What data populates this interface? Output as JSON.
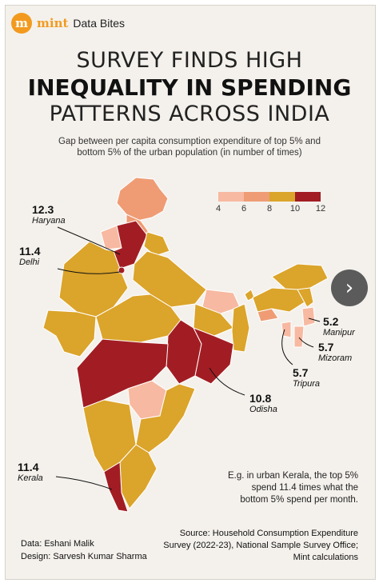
{
  "brand": {
    "logo_letter": "m",
    "name": "mint",
    "section": "Data Bites"
  },
  "title": {
    "line1": "SURVEY FINDS HIGH",
    "line2": "INEQUALITY IN SPENDING",
    "line3": "PATTERNS ACROSS INDIA"
  },
  "subtitle": "Gap between per capita consumption expenditure of top 5% and bottom 5% of the urban population (in number of times)",
  "legend": {
    "ticks": [
      "4",
      "6",
      "8",
      "10",
      "12"
    ],
    "colors": [
      "#f7b9a1",
      "#ef9c75",
      "#dba42a",
      "#a21d23"
    ]
  },
  "callouts": [
    {
      "value": "12.3",
      "name": "Haryana"
    },
    {
      "value": "11.4",
      "name": "Delhi"
    },
    {
      "value": "5.2",
      "name": "Manipur"
    },
    {
      "value": "5.7",
      "name": "Mizoram"
    },
    {
      "value": "5.7",
      "name": "Tripura"
    },
    {
      "value": "10.8",
      "name": "Odisha"
    },
    {
      "value": "11.4",
      "name": "Kerala"
    }
  ],
  "note": "E.g. in urban Kerala, the top 5% spend 11.4 times what the bottom 5% spend per month.",
  "credits": {
    "data": "Data: Eshani Malik",
    "design": "Design: Sarvesh Kumar Sharma"
  },
  "source": "Source: Household Consumption Expenditure Survey (2022-23), National Sample Survey Office; Mint calculations",
  "nav": {
    "next_icon": "›"
  }
}
